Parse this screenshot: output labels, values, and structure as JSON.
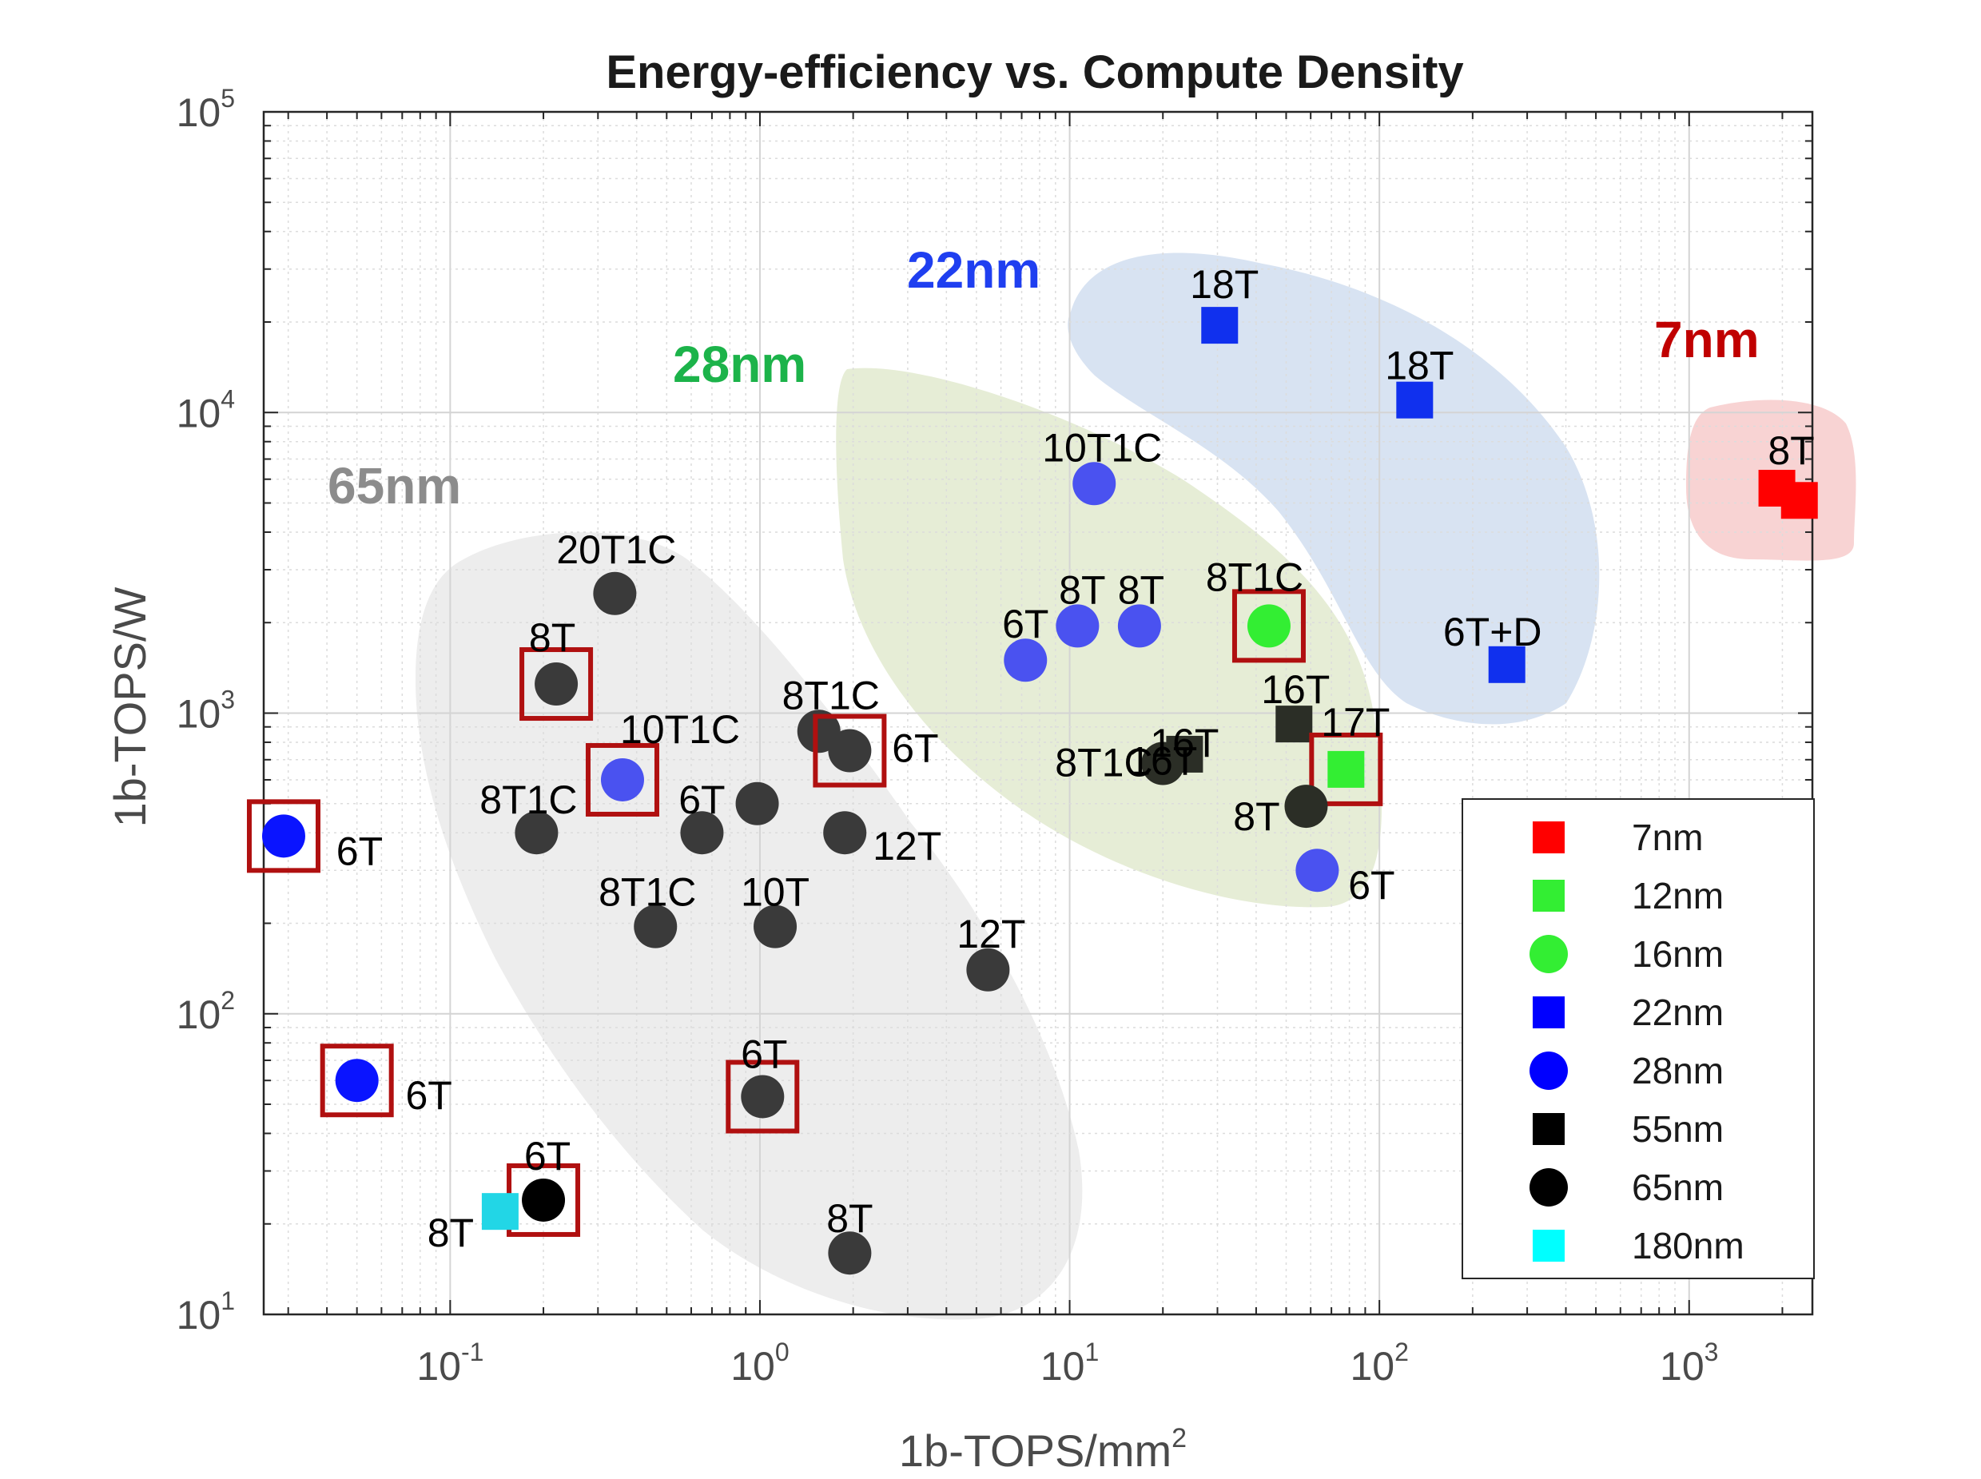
{
  "chart_data": {
    "type": "scatter",
    "title": "Energy-efficiency vs. Compute Density",
    "xlabel": "1b-TOPS/mm",
    "xlabel_sup": "2",
    "ylabel": "1b-TOPS/W",
    "xscale": "log",
    "yscale": "log",
    "xlim": [
      0.025,
      2500
    ],
    "ylim": [
      10,
      100000
    ],
    "grid": true,
    "x_ticks": [
      {
        "base": "10",
        "exp": "-1",
        "value": 0.1
      },
      {
        "base": "10",
        "exp": "0",
        "value": 1
      },
      {
        "base": "10",
        "exp": "1",
        "value": 10
      },
      {
        "base": "10",
        "exp": "2",
        "value": 100
      },
      {
        "base": "10",
        "exp": "3",
        "value": 1000
      }
    ],
    "y_ticks": [
      {
        "base": "10",
        "exp": "1",
        "value": 10
      },
      {
        "base": "10",
        "exp": "2",
        "value": 100
      },
      {
        "base": "10",
        "exp": "3",
        "value": 1000
      },
      {
        "base": "10",
        "exp": "4",
        "value": 10000
      },
      {
        "base": "10",
        "exp": "5",
        "value": 100000
      }
    ],
    "legend_position": "lower-right",
    "legend": [
      {
        "name": "7nm",
        "color": "#ff0000",
        "marker": "square"
      },
      {
        "name": "12nm",
        "color": "#33ee33",
        "marker": "square"
      },
      {
        "name": "16nm",
        "color": "#33ee33",
        "marker": "circle"
      },
      {
        "name": "22nm",
        "color": "#0000ff",
        "marker": "square"
      },
      {
        "name": "28nm",
        "color": "#0000ff",
        "marker": "circle"
      },
      {
        "name": "55nm",
        "color": "#000000",
        "marker": "square"
      },
      {
        "name": "65nm",
        "color": "#000000",
        "marker": "circle"
      },
      {
        "name": "180nm",
        "color": "#00ffff",
        "marker": "square"
      }
    ],
    "regions": [
      {
        "label": "65nm",
        "color": "#8c8c8c",
        "fill": "#ededed"
      },
      {
        "label": "28nm",
        "color": "#1cb34a",
        "fill": "#e6edd6"
      },
      {
        "label": "22nm",
        "color": "#1f3ff0",
        "fill": "#d8e3f2"
      },
      {
        "label": "7nm",
        "color": "#c00000",
        "fill": "#f8d3d3"
      }
    ],
    "points": [
      {
        "x": 0.029,
        "y": 390,
        "marker": "circle",
        "color": "#0a14ff",
        "label": "6T",
        "boxed": true
      },
      {
        "x": 0.05,
        "y": 60,
        "marker": "circle",
        "color": "#0a14ff",
        "label": "6T",
        "boxed": true
      },
      {
        "x": 0.2,
        "y": 24,
        "marker": "circle",
        "color": "#000000",
        "label": "6T",
        "boxed": true
      },
      {
        "x": 0.145,
        "y": 22,
        "marker": "square",
        "color": "#22d6e6",
        "label": "8T",
        "boxed": false
      },
      {
        "x": 0.22,
        "y": 1250,
        "marker": "circle",
        "color": "#3a3a3a",
        "label": "8T",
        "boxed": true
      },
      {
        "x": 0.34,
        "y": 2500,
        "marker": "circle",
        "color": "#3a3a3a",
        "label": "20T1C",
        "boxed": false
      },
      {
        "x": 0.36,
        "y": 600,
        "marker": "circle",
        "color": "#4a52f0",
        "label": "10T1C",
        "boxed": true
      },
      {
        "x": 0.19,
        "y": 400,
        "marker": "circle",
        "color": "#3a3a3a",
        "label": "8T1C",
        "boxed": false
      },
      {
        "x": 0.65,
        "y": 400,
        "marker": "circle",
        "color": "#3a3a3a",
        "label": "6T",
        "boxed": false
      },
      {
        "x": 0.98,
        "y": 500,
        "marker": "circle",
        "color": "#3a3a3a",
        "label": "",
        "boxed": false
      },
      {
        "x": 0.46,
        "y": 195,
        "marker": "circle",
        "color": "#3a3a3a",
        "label": "8T1C",
        "boxed": false
      },
      {
        "x": 1.12,
        "y": 195,
        "marker": "circle",
        "color": "#3a3a3a",
        "label": "10T",
        "boxed": false
      },
      {
        "x": 1.55,
        "y": 870,
        "marker": "circle",
        "color": "#3a3a3a",
        "label": "8T1C",
        "boxed": false
      },
      {
        "x": 1.95,
        "y": 750,
        "marker": "circle",
        "color": "#3a3a3a",
        "label": "6T",
        "boxed": true
      },
      {
        "x": 1.88,
        "y": 400,
        "marker": "circle",
        "color": "#3a3a3a",
        "label": "12T",
        "boxed": false
      },
      {
        "x": 5.45,
        "y": 140,
        "marker": "circle",
        "color": "#3a3a3a",
        "label": "12T",
        "boxed": false
      },
      {
        "x": 1.02,
        "y": 53,
        "marker": "circle",
        "color": "#3a3a3a",
        "label": "6T",
        "boxed": true
      },
      {
        "x": 1.95,
        "y": 16,
        "marker": "circle",
        "color": "#3a3a3a",
        "label": "8T",
        "boxed": false
      },
      {
        "x": 7.2,
        "y": 1500,
        "marker": "circle",
        "color": "#4a52f0",
        "label": "6T",
        "boxed": false
      },
      {
        "x": 10.6,
        "y": 1950,
        "marker": "circle",
        "color": "#4a52f0",
        "label": "8T",
        "boxed": false
      },
      {
        "x": 16.8,
        "y": 1950,
        "marker": "circle",
        "color": "#4a52f0",
        "label": "8T",
        "boxed": false
      },
      {
        "x": 12,
        "y": 5800,
        "marker": "circle",
        "color": "#4a52f0",
        "label": "10T1C",
        "boxed": false
      },
      {
        "x": 44,
        "y": 1950,
        "marker": "circle",
        "color": "#33ee33",
        "label": "8T1C",
        "boxed": true
      },
      {
        "x": 23.5,
        "y": 730,
        "marker": "square",
        "color": "#2b2e26",
        "label": "",
        "boxed": false
      },
      {
        "x": 20,
        "y": 680,
        "marker": "circle",
        "color": "#2b2e26",
        "label": "16T",
        "boxed": false
      },
      {
        "x": 53,
        "y": 920,
        "marker": "square",
        "color": "#2b2e26",
        "label": "16T",
        "boxed": false
      },
      {
        "x": 78,
        "y": 650,
        "marker": "square",
        "color": "#33ee33",
        "label": "17T",
        "boxed": true
      },
      {
        "x": 58,
        "y": 490,
        "marker": "circle",
        "color": "#2b2e26",
        "label": "8T",
        "boxed": false
      },
      {
        "x": 63,
        "y": 300,
        "marker": "circle",
        "color": "#4a52f0",
        "label": "6T",
        "boxed": false
      },
      {
        "x": 30.5,
        "y": 19500,
        "marker": "square",
        "color": "#1030ee",
        "label": "18T",
        "boxed": false
      },
      {
        "x": 130,
        "y": 11000,
        "marker": "square",
        "color": "#1030ee",
        "label": "18T",
        "boxed": false
      },
      {
        "x": 258,
        "y": 1450,
        "marker": "square",
        "color": "#1030ee",
        "label": "6T+D",
        "boxed": false
      },
      {
        "x": 1920,
        "y": 5600,
        "marker": "square",
        "color": "#ff0000",
        "label": "8T",
        "boxed": false
      },
      {
        "x": 2270,
        "y": 5100,
        "marker": "square",
        "color": "#ff0000",
        "label": "",
        "boxed": false
      }
    ],
    "extra_labels": [
      {
        "text": "8T1C",
        "x": 12.9,
        "y": 680
      },
      {
        "text": "16T",
        "x": 23.5,
        "y": 790
      }
    ]
  }
}
